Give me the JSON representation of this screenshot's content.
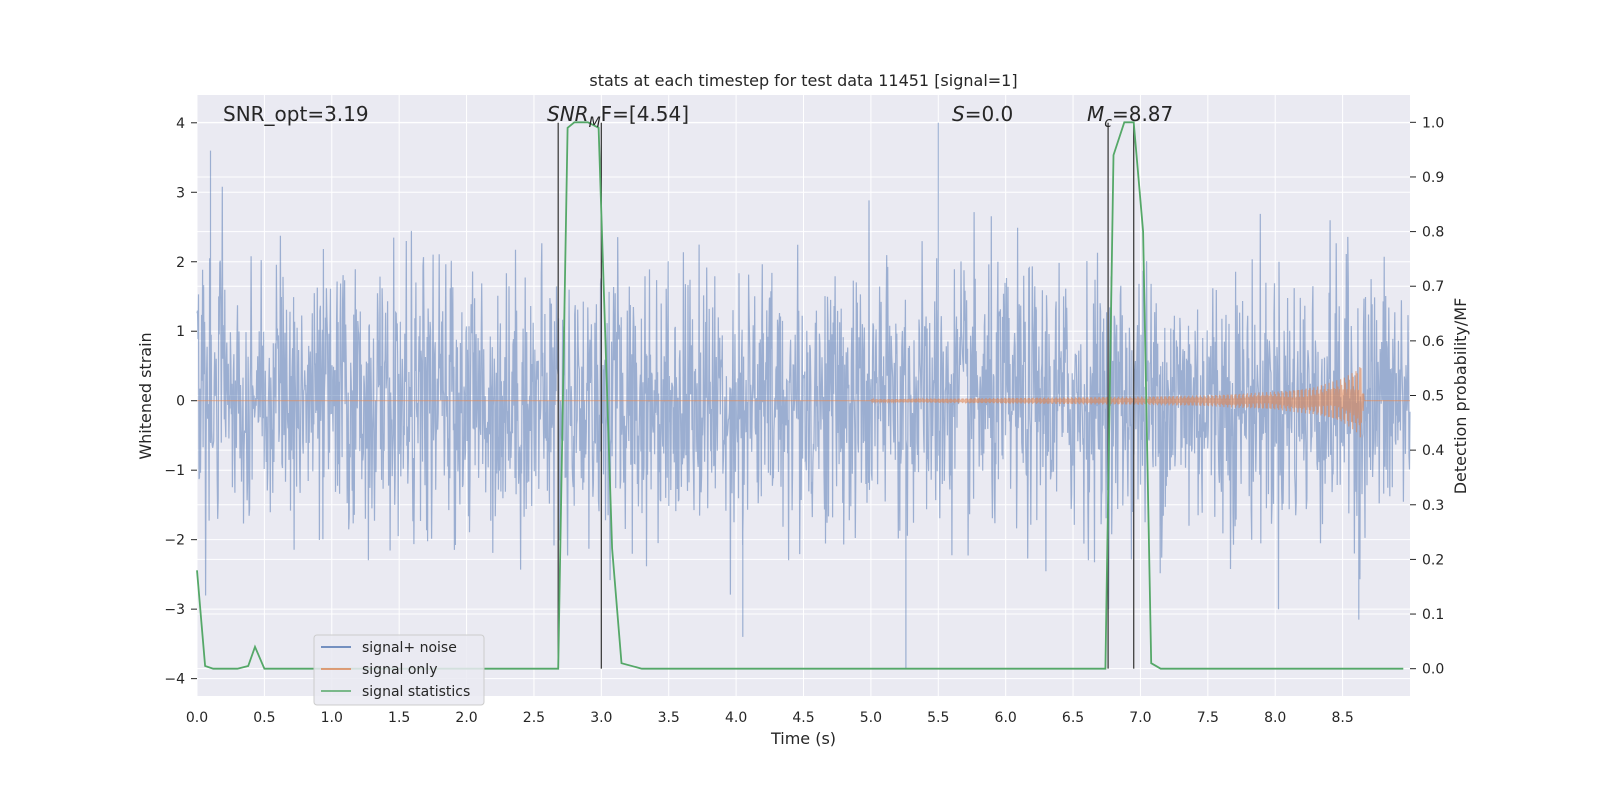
{
  "chart_data": {
    "type": "line",
    "title": "stats at each timestep for test data 11451 [signal=1]",
    "xlabel": "Time (s)",
    "ylabel": "Whitened strain",
    "ylabel_right": "Detection probability/MF",
    "xlim": [
      0,
      9.0
    ],
    "ylim": [
      -4.25,
      4.4
    ],
    "ylim_right": [
      -0.05,
      1.05
    ],
    "x_ticks": [
      0.0,
      0.5,
      1.0,
      1.5,
      2.0,
      2.5,
      3.0,
      3.5,
      4.0,
      4.5,
      5.0,
      5.5,
      6.0,
      6.5,
      7.0,
      7.5,
      8.0,
      8.5
    ],
    "x_tick_labels": [
      "0.0",
      "0.5",
      "1.0",
      "1.5",
      "2.0",
      "2.5",
      "3.0",
      "3.5",
      "4.0",
      "4.5",
      "5.0",
      "5.5",
      "6.0",
      "6.5",
      "7.0",
      "7.5",
      "8.0",
      "8.5"
    ],
    "y_ticks": [
      4,
      3,
      2,
      1,
      0,
      -1,
      -2,
      -3,
      -4
    ],
    "y_tick_labels": [
      "4",
      "3",
      "2",
      "1",
      "0",
      "−1",
      "−2",
      "−3",
      "−4"
    ],
    "y_right_ticks": [
      1.0,
      0.9,
      0.8,
      0.7,
      0.6,
      0.5,
      0.4,
      0.3,
      0.2,
      0.1,
      0.0
    ],
    "y_right_tick_labels": [
      "1.0",
      "0.9",
      "0.8",
      "0.7",
      "0.6",
      "0.5",
      "0.4",
      "0.3",
      "0.2",
      "0.1",
      "0.0"
    ],
    "grid": true,
    "legend_position": "lower-left",
    "annotations": [
      "SNR_opt=3.19",
      "SNR",
      "M",
      "F=[4.54]",
      "S",
      "=0.0",
      "M",
      "c",
      "=8.87"
    ],
    "series": [
      {
        "name": "signal+ noise",
        "color": "#4c72b0",
        "axis": "left",
        "kind": "noise",
        "typical_amplitude": [
          -1.5,
          1.7
        ],
        "notable_peaks": [
          [
            0.1,
            3.6
          ],
          [
            5.5,
            4.0
          ],
          [
            5.26,
            -3.85
          ],
          [
            4.05,
            -3.4
          ],
          [
            8.62,
            -3.15
          ]
        ]
      },
      {
        "name": "signal only",
        "color": "#dd8452",
        "axis": "left",
        "kind": "chirp",
        "x": [
          5.0,
          6.0,
          7.0,
          7.5,
          8.0,
          8.3,
          8.5,
          8.6,
          8.64,
          8.66
        ],
        "envelope": [
          0.02,
          0.04,
          0.06,
          0.08,
          0.13,
          0.2,
          0.32,
          0.45,
          0.55,
          0.0
        ]
      },
      {
        "name": "signal statistics",
        "color": "#55a868",
        "axis": "right",
        "x": [
          0.0,
          0.06,
          0.12,
          0.2,
          0.3,
          0.38,
          0.43,
          0.5,
          0.6,
          1.0,
          2.0,
          2.68,
          2.75,
          2.8,
          2.9,
          2.98,
          3.08,
          3.15,
          3.3,
          4.0,
          5.0,
          6.0,
          6.74,
          6.8,
          6.88,
          6.95,
          7.02,
          7.08,
          7.15,
          7.5,
          8.0,
          8.5,
          8.8,
          8.95
        ],
        "values": [
          0.18,
          0.005,
          0.0,
          0.0,
          0.0,
          0.005,
          0.04,
          0.0,
          0.0,
          0.0,
          0.0,
          0.0,
          0.99,
          1.0,
          1.0,
          0.99,
          0.22,
          0.01,
          0.0,
          0.0,
          0.0,
          0.0,
          0.0,
          0.94,
          1.0,
          1.0,
          0.8,
          0.01,
          0.0,
          0.0,
          0.0,
          0.0,
          0.0,
          0.0
        ]
      }
    ],
    "vertical_markers": [
      {
        "x": 2.68,
        "y_top": 4.0,
        "y_bottom": 0.0
      },
      {
        "x": 3.0,
        "y_top": 4.0,
        "y_bottom": 0.0
      },
      {
        "x": 6.76,
        "y_top": 4.0,
        "y_bottom": 0.0
      },
      {
        "x": 6.95,
        "y_top": 4.0,
        "y_bottom": 0.0
      }
    ]
  }
}
